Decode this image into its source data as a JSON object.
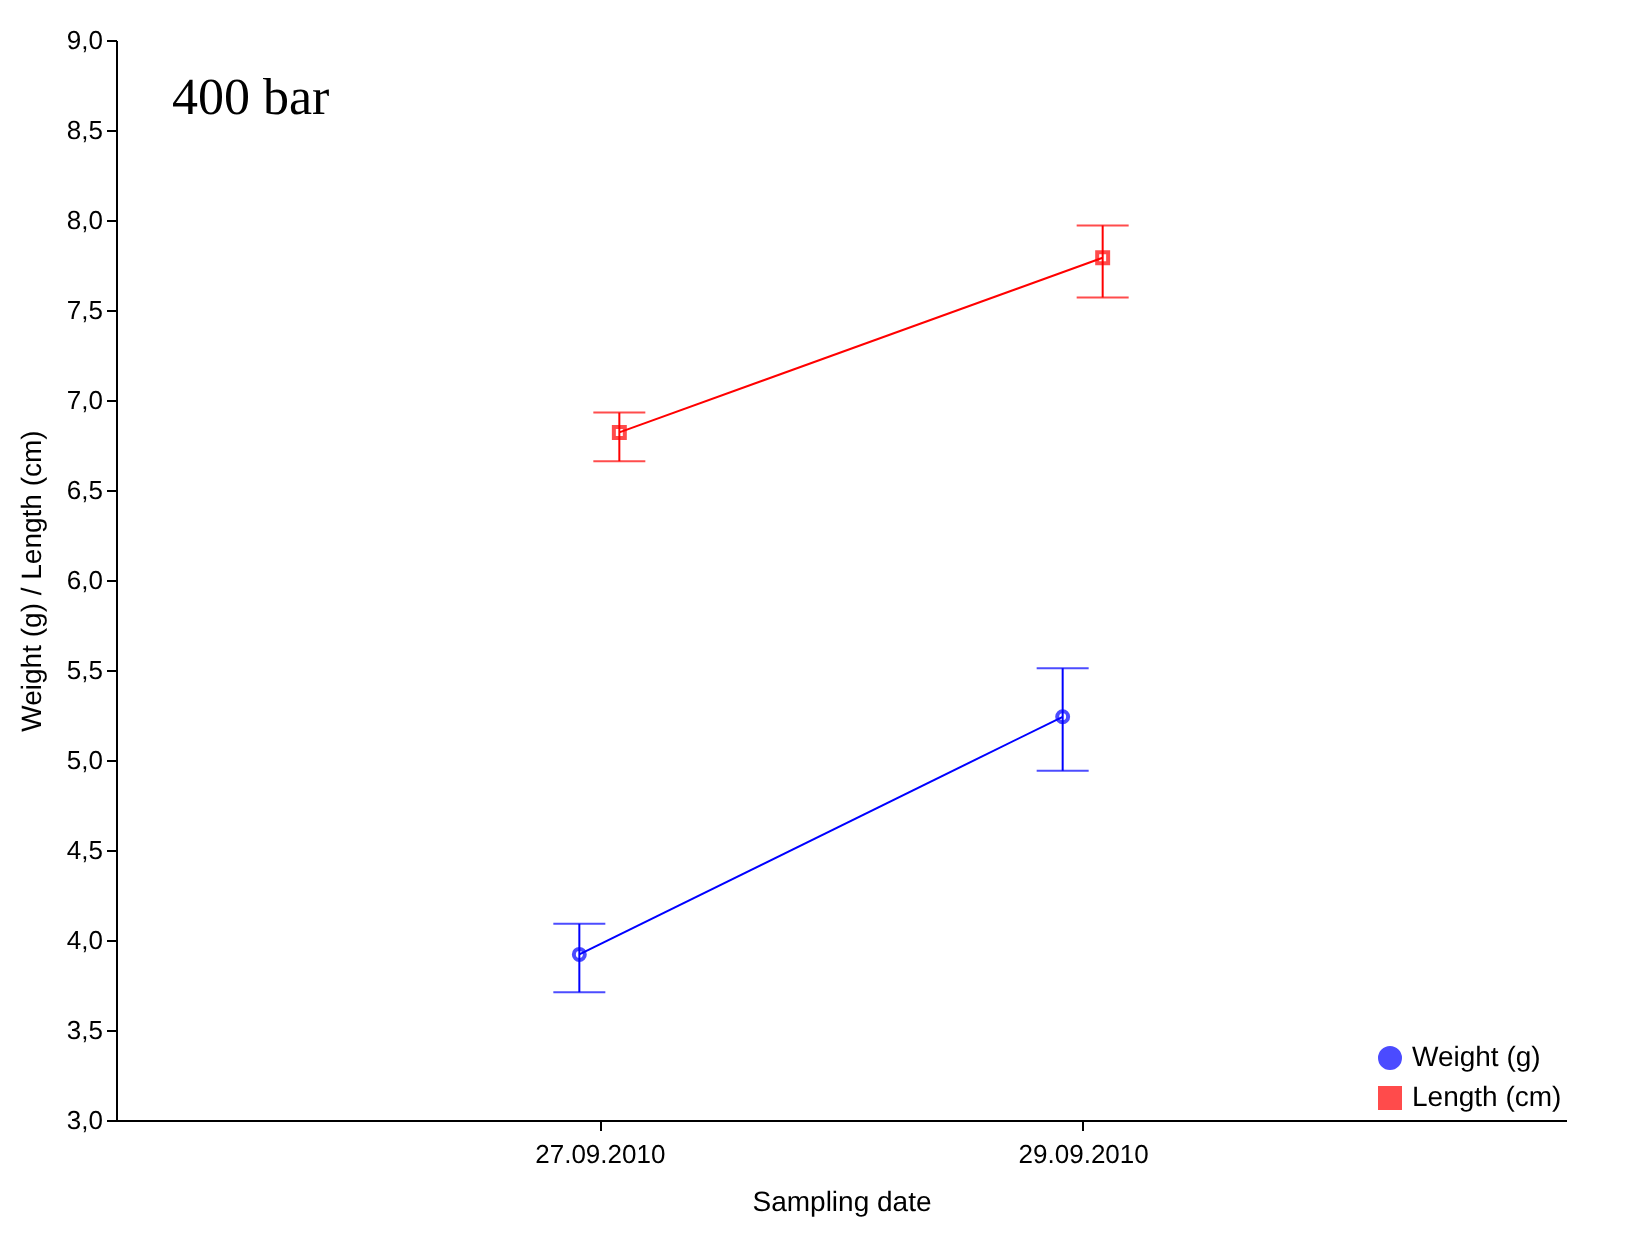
{
  "chart_data": {
    "type": "line",
    "annotations": [
      "400 bar"
    ],
    "xlabel": "Sampling date",
    "ylabel": "Weight (g) / Length (cm)",
    "categories": [
      "27.09.2010",
      "29.09.2010"
    ],
    "series": [
      {
        "name": "Weight (g)",
        "color": "#0000ff",
        "marker": "circle",
        "values": [
          3.92,
          5.24
        ],
        "errors": [
          [
            3.71,
            4.09
          ],
          [
            4.94,
            5.51
          ]
        ]
      },
      {
        "name": "Length (cm)",
        "color": "#ff0000",
        "marker": "square",
        "values": [
          6.82,
          7.79
        ],
        "errors": [
          [
            6.66,
            6.93
          ],
          [
            7.57,
            7.97
          ]
        ]
      }
    ],
    "ylim": [
      3,
      9
    ],
    "yticks": [
      {
        "value": 3,
        "label": "3,0"
      },
      {
        "value": 3.5,
        "label": "3,5"
      },
      {
        "value": 4,
        "label": "4,0"
      },
      {
        "value": 4.5,
        "label": "4,5"
      },
      {
        "value": 5,
        "label": "5,0"
      },
      {
        "value": 5.5,
        "label": "5,5"
      },
      {
        "value": 6,
        "label": "6,0"
      },
      {
        "value": 6.5,
        "label": "6,5"
      },
      {
        "value": 7,
        "label": "7,0"
      },
      {
        "value": 7.5,
        "label": "7,5"
      },
      {
        "value": 8,
        "label": "8,0"
      },
      {
        "value": 8.5,
        "label": "8,5"
      },
      {
        "value": 9,
        "label": "9,0"
      }
    ],
    "grid": false,
    "legend": "bottom right",
    "line_style": "solid"
  }
}
